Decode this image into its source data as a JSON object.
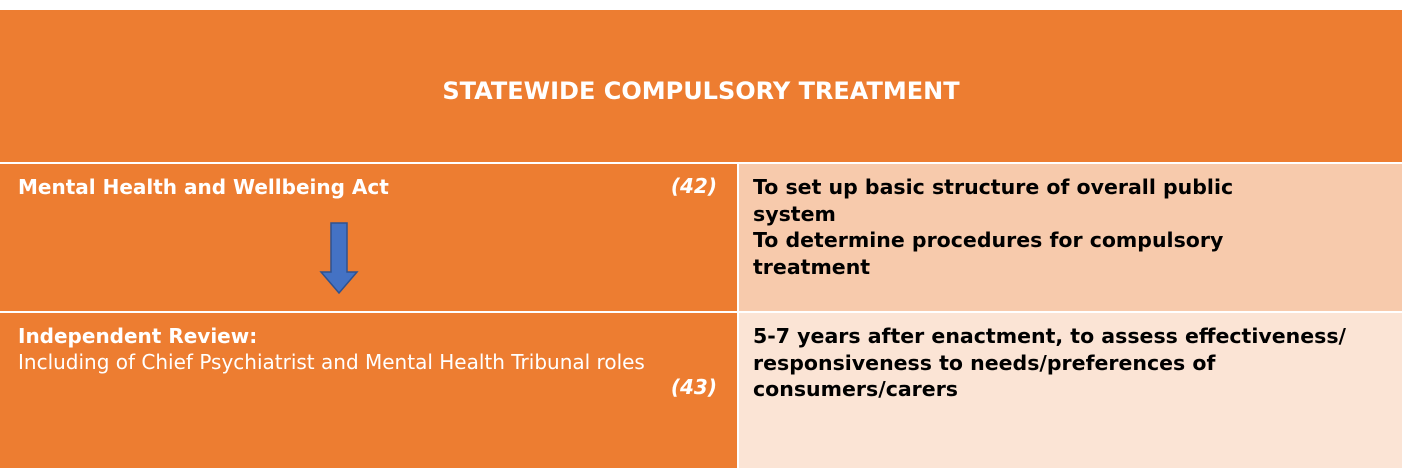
{
  "header": {
    "title": "STATEWIDE COMPULSORY TREATMENT"
  },
  "rows": [
    {
      "left": {
        "title": "Mental Health and Wellbeing Act",
        "ref": "(42)"
      },
      "right": [
        "To set up basic structure of overall public system",
        "To determine procedures for compulsory treatment"
      ]
    },
    {
      "left": {
        "title": "Independent Review:",
        "text": "Including of Chief Psychiatrist and Mental Health Tribunal roles",
        "ref": "(43)"
      },
      "right": [
        "5-7 years after enactment, to assess effectiveness/ responsiveness to needs/preferences of consumers/carers"
      ]
    }
  ]
}
